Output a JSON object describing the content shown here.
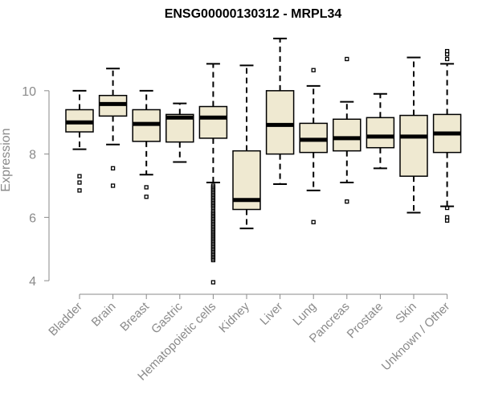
{
  "chart_data": {
    "type": "boxplot",
    "title": "ENSG00000130312 - MRPL34",
    "xlabel": "",
    "ylabel": "Expression",
    "ylim": [
      3.8,
      11.9
    ],
    "yticks": [
      4,
      6,
      8,
      10
    ],
    "box_fill": "#efe9d1",
    "categories": [
      "Bladder",
      "Brain",
      "Breast",
      "Gastric",
      "Hematopoietic cells",
      "Kidney",
      "Liver",
      "Lung",
      "Pancreas",
      "Prostate",
      "Skin",
      "Unknown / Other"
    ],
    "boxes": [
      {
        "name": "Bladder",
        "whisker_low": 8.15,
        "q1": 8.7,
        "median": 9.0,
        "q3": 9.4,
        "whisker_high": 10.0,
        "outliers": [
          7.3,
          7.1,
          6.85
        ]
      },
      {
        "name": "Brain",
        "whisker_low": 8.3,
        "q1": 9.2,
        "median": 9.58,
        "q3": 9.85,
        "whisker_high": 10.7,
        "outliers": [
          7.55,
          7.0
        ]
      },
      {
        "name": "Breast",
        "whisker_low": 7.35,
        "q1": 8.4,
        "median": 8.95,
        "q3": 9.4,
        "whisker_high": 10.0,
        "outliers": [
          6.95,
          6.65
        ]
      },
      {
        "name": "Gastric",
        "whisker_low": 7.75,
        "q1": 8.38,
        "median": 9.15,
        "q3": 9.25,
        "whisker_high": 9.6,
        "outliers": []
      },
      {
        "name": "Hematopoietic cells",
        "whisker_low": 7.1,
        "q1": 8.5,
        "median": 9.15,
        "q3": 9.5,
        "whisker_high": 10.85,
        "outliers": [
          7.0,
          6.95,
          6.9,
          6.85,
          6.8,
          6.75,
          6.7,
          6.65,
          6.6,
          6.55,
          6.5,
          6.45,
          6.4,
          6.35,
          6.3,
          6.2,
          6.15,
          6.1,
          6.05,
          6.0,
          5.95,
          5.9,
          5.85,
          5.8,
          5.75,
          5.7,
          5.65,
          5.6,
          5.55,
          5.5,
          5.45,
          5.4,
          5.35,
          5.3,
          5.25,
          5.2,
          5.15,
          5.1,
          5.05,
          5.0,
          4.95,
          4.9,
          4.85,
          4.8,
          4.75,
          4.7,
          4.65,
          3.95
        ]
      },
      {
        "name": "Kidney",
        "whisker_low": 5.65,
        "q1": 6.25,
        "median": 6.55,
        "q3": 8.1,
        "whisker_high": 10.8,
        "outliers": []
      },
      {
        "name": "Liver",
        "whisker_low": 7.05,
        "q1": 8.0,
        "median": 8.92,
        "q3": 10.0,
        "whisker_high": 11.65,
        "outliers": []
      },
      {
        "name": "Lung",
        "whisker_low": 6.85,
        "q1": 8.05,
        "median": 8.45,
        "q3": 8.97,
        "whisker_high": 10.15,
        "outliers": [
          10.65,
          5.85
        ]
      },
      {
        "name": "Pancreas",
        "whisker_low": 7.1,
        "q1": 8.1,
        "median": 8.5,
        "q3": 9.1,
        "whisker_high": 9.65,
        "outliers": [
          11.0,
          6.5
        ]
      },
      {
        "name": "Prostate",
        "whisker_low": 7.55,
        "q1": 8.2,
        "median": 8.55,
        "q3": 9.15,
        "whisker_high": 9.9,
        "outliers": []
      },
      {
        "name": "Skin",
        "whisker_low": 6.15,
        "q1": 7.3,
        "median": 8.55,
        "q3": 9.22,
        "whisker_high": 11.05,
        "outliers": []
      },
      {
        "name": "Unknown / Other",
        "whisker_low": 6.35,
        "q1": 8.05,
        "median": 8.65,
        "q3": 9.25,
        "whisker_high": 10.85,
        "outliers": [
          11.25,
          11.15,
          11.0,
          6.3,
          6.0,
          5.9
        ]
      }
    ]
  }
}
